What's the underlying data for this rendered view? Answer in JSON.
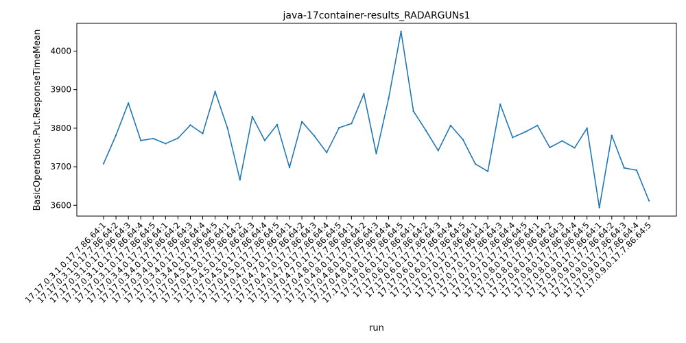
{
  "chart_data": {
    "type": "line",
    "title": "java-17container-results_RADARGUNs1",
    "xlabel": "run",
    "ylabel": "BasicOperations.Put.ResponseTimeMean",
    "ylim": [
      3572,
      4072
    ],
    "yticks": [
      3600,
      3700,
      3800,
      3900,
      4000
    ],
    "grid": false,
    "line_color": "#1f77b4",
    "categories": [
      "17.17.0.3.1.0.17.7.86.64:1",
      "17.17.0.3.1.0.17.7.86.64:2",
      "17.17.0.3.1.0.17.7.86.64:3",
      "17.17.0.3.1.0.17.7.86.64:4",
      "17.17.0.3.1.0.17.7.86.64:5",
      "17.17.0.3.4.0.17.7.86.64:1",
      "17.17.0.3.4.0.17.7.86.64:2",
      "17.17.0.3.4.0.17.7.86.64:3",
      "17.17.0.3.4.0.17.7.86.64:4",
      "17.17.0.3.4.0.17.7.86.64:5",
      "17.17.0.4.5.0.17.7.86.64:1",
      "17.17.0.4.5.0.17.7.86.64:2",
      "17.17.0.4.5.0.17.7.86.64:3",
      "17.17.0.4.5.0.17.7.86.64:4",
      "17.17.0.4.5.0.17.7.86.64:5",
      "17.17.0.4.7.0.17.7.86.64:1",
      "17.17.0.4.7.0.17.7.86.64:2",
      "17.17.0.4.7.0.17.7.86.64:3",
      "17.17.0.4.7.0.17.7.86.64:4",
      "17.17.0.4.7.0.17.7.86.64:5",
      "17.17.0.4.8.0.17.7.86.64:1",
      "17.17.0.4.8.0.17.7.86.64:2",
      "17.17.0.4.8.0.17.7.86.64:3",
      "17.17.0.4.8.0.17.7.86.64:4",
      "17.17.0.4.8.0.17.7.86.64:5",
      "17.17.0.6.0.17.7.86.64:1",
      "17.17.0.6.0.17.7.86.64:2",
      "17.17.0.6.0.17.7.86.64:3",
      "17.17.0.6.0.17.7.86.64:4",
      "17.17.0.6.0.17.7.86.64:5",
      "17.17.0.7.0.17.7.86.64:1",
      "17.17.0.7.0.17.7.86.64:2",
      "17.17.0.7.0.17.7.86.64:3",
      "17.17.0.7.0.17.7.86.64:4",
      "17.17.0.7.0.17.7.86.64:5",
      "17.17.0.8.0.17.7.86.64:1",
      "17.17.0.8.0.17.7.86.64:2",
      "17.17.0.8.0.17.7.86.64:3",
      "17.17.0.8.0.17.7.86.64:4",
      "17.17.0.8.0.17.7.86.64:5",
      "17.17.0.9.0.17.7.86.64:1",
      "17.17.0.9.0.17.7.86.64:2",
      "17.17.0.9.0.17.7.86.64:3",
      "17.17.0.9.0.17.7.86.64:4",
      "17.17.0.9.0.17.7.86.64:5"
    ],
    "values": [
      3708,
      3782,
      3865,
      3768,
      3773,
      3760,
      3774,
      3808,
      3786,
      3895,
      3800,
      3666,
      3830,
      3768,
      3809,
      3698,
      3817,
      3780,
      3737,
      3801,
      3812,
      3889,
      3734,
      3878,
      4051,
      3844,
      3794,
      3742,
      3807,
      3770,
      3707,
      3688,
      3862,
      3776,
      3790,
      3807,
      3750,
      3767,
      3749,
      3800,
      3594,
      3781,
      3697,
      3691,
      3612
    ]
  }
}
